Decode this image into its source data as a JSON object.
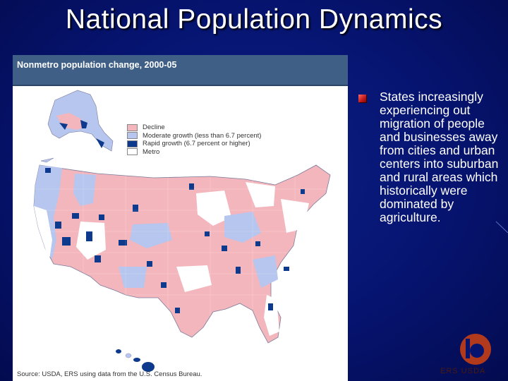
{
  "slide": {
    "title": "National Population Dynamics"
  },
  "map": {
    "title": "Nonmetro population change, 2000-05",
    "legend": [
      {
        "label": "Decline",
        "color": "#f4b6bd"
      },
      {
        "label": "Moderate growth (less than 6.7 percent)",
        "color": "#b7c6ee"
      },
      {
        "label": "Rapid growth (6.7 percent or higher)",
        "color": "#0d3a8c"
      },
      {
        "label": "Metro",
        "color": "#ffffff"
      }
    ],
    "source": "Source: USDA, ERS using data from the U.S. Census Bureau."
  },
  "bullet": {
    "text": "States increasingly experiencing out migration of people and businesses away from cities and urban centers into suburban and rural areas which historically were dominated by agriculture."
  },
  "colors": {
    "background": "#061470",
    "header": "#3f5f86",
    "bullet": "#c01818"
  },
  "logo": {
    "caption": "ERS USDA"
  }
}
